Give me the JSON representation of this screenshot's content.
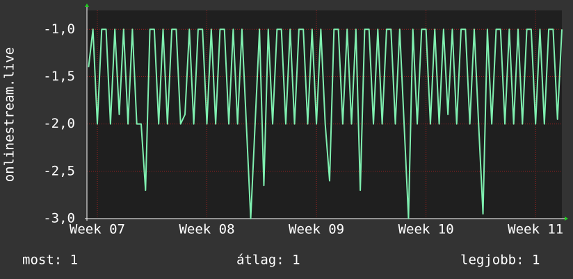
{
  "chart_data": {
    "type": "line",
    "y_label": "onlinestream.live",
    "xlim": [
      6.905,
      11.24
    ],
    "ylim": [
      -3.0,
      -0.8
    ],
    "xticks": [
      {
        "value": 7,
        "label": "Week 07"
      },
      {
        "value": 8,
        "label": "Week 08"
      },
      {
        "value": 9,
        "label": "Week 09"
      },
      {
        "value": 10,
        "label": "Week 10"
      },
      {
        "value": 11,
        "label": "Week 11"
      }
    ],
    "yticks": [
      {
        "value": -1,
        "label": "-1,0"
      },
      {
        "value": -1.5,
        "label": "-1,5"
      },
      {
        "value": -2,
        "label": "-2,0"
      },
      {
        "value": -2.5,
        "label": "-2,5"
      },
      {
        "value": -3,
        "label": "-3,0"
      }
    ],
    "grid": true,
    "series": [
      {
        "color": "#7ff0b0",
        "x": [
          6.92,
          6.96,
          7.0,
          7.04,
          7.08,
          7.12,
          7.16,
          7.2,
          7.24,
          7.28,
          7.32,
          7.36,
          7.4,
          7.44,
          7.48,
          7.52,
          7.56,
          7.6,
          7.64,
          7.68,
          7.72,
          7.76,
          7.8,
          7.84,
          7.88,
          7.92,
          7.96,
          8.0,
          8.04,
          8.08,
          8.12,
          8.16,
          8.2,
          8.24,
          8.28,
          8.32,
          8.36,
          8.4,
          8.44,
          8.48,
          8.52,
          8.56,
          8.6,
          8.64,
          8.68,
          8.72,
          8.76,
          8.8,
          8.84,
          8.88,
          8.92,
          8.96,
          9.0,
          9.04,
          9.08,
          9.12,
          9.16,
          9.2,
          9.24,
          9.28,
          9.32,
          9.36,
          9.4,
          9.44,
          9.48,
          9.52,
          9.56,
          9.6,
          9.64,
          9.68,
          9.72,
          9.76,
          9.8,
          9.84,
          9.88,
          9.92,
          9.96,
          10.0,
          10.04,
          10.08,
          10.12,
          10.16,
          10.2,
          10.24,
          10.28,
          10.32,
          10.36,
          10.4,
          10.44,
          10.48,
          10.52,
          10.56,
          10.6,
          10.64,
          10.68,
          10.72,
          10.76,
          10.8,
          10.84,
          10.88,
          10.92,
          10.96,
          11.0,
          11.04,
          11.08,
          11.12,
          11.16,
          11.2,
          11.24
        ],
        "values": [
          -1.4,
          -1,
          -2,
          -1,
          -1,
          -2,
          -1,
          -1.9,
          -1,
          -2,
          -1,
          -2,
          -2,
          -2.7,
          -1,
          -1,
          -2,
          -1,
          -2,
          -1,
          -1,
          -2,
          -1.9,
          -1,
          -2,
          -1,
          -1,
          -2,
          -1,
          -2,
          -1,
          -1,
          -2,
          -1,
          -2,
          -1,
          -2,
          -3.0,
          -2,
          -1,
          -2.65,
          -1,
          -2,
          -1,
          -1,
          -2,
          -1,
          -2,
          -1,
          -1,
          -2,
          -1,
          -2,
          -1,
          -2,
          -2.6,
          -1,
          -1,
          -2,
          -1,
          -2,
          -1,
          -2.7,
          -1,
          -1,
          -2,
          -1,
          -2,
          -1,
          -1,
          -2,
          -1,
          -2,
          -3.0,
          -1,
          -2,
          -1,
          -1,
          -2,
          -1,
          -2,
          -1,
          -1.9,
          -1,
          -2,
          -1,
          -1,
          -2,
          -1,
          -2,
          -2.95,
          -1,
          -2,
          -1,
          -1,
          -2,
          -1,
          -2,
          -1,
          -2,
          -1,
          -1,
          -2,
          -1,
          -2,
          -1,
          -1,
          -1.95,
          -1
        ]
      }
    ]
  },
  "footer": {
    "current": "most: 1",
    "average": "átlag: 1",
    "best": "legjobb: 1"
  }
}
